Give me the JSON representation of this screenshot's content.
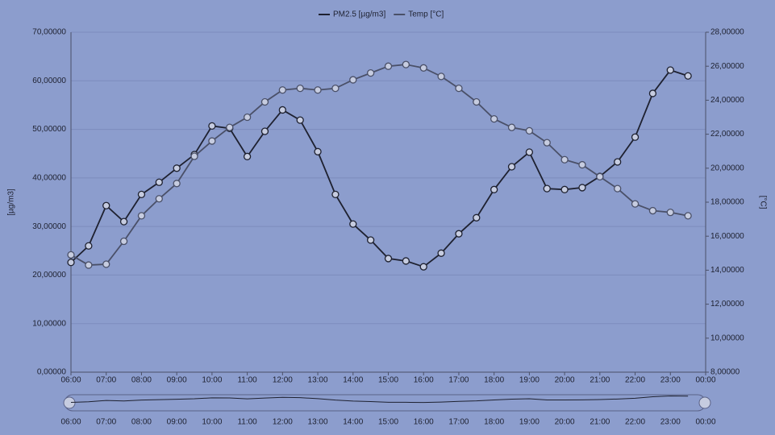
{
  "chart_data": {
    "type": "line",
    "ylabel": "[µg/m3]",
    "y2label": "[°C]",
    "legend": "top",
    "grid": true,
    "x": [
      6,
      6.5,
      7,
      7.5,
      8,
      8.5,
      9,
      9.5,
      10,
      10.5,
      11,
      11.5,
      12,
      12.5,
      13,
      13.5,
      14,
      14.5,
      15,
      15.5,
      16,
      16.5,
      17,
      17.5,
      18,
      18.5,
      19,
      19.5,
      20,
      20.5,
      21,
      21.5,
      22,
      22.5,
      23,
      23.5
    ],
    "series": [
      {
        "name": "PM2.5 [µg/m3]",
        "color": "#1e2130",
        "values": [
          22.6,
          26,
          34.3,
          31,
          36.6,
          39.1,
          42,
          44.8,
          50.7,
          50.2,
          44.4,
          49.6,
          54,
          51.9,
          45.4,
          36.6,
          30.5,
          27.2,
          23.4,
          22.9,
          21.7,
          24.5,
          28.5,
          31.8,
          37.6,
          42.3,
          45.3,
          37.8,
          37.6,
          38,
          40.3,
          43.3,
          48.4,
          57.4,
          62.2,
          61
        ]
      },
      {
        "name": "Temp [°C]",
        "color": "#4a5068",
        "axis": "y2",
        "values": [
          14.9,
          14.3,
          14.35,
          15.7,
          17.2,
          18.2,
          19.1,
          20.7,
          21.6,
          22.4,
          23,
          23.9,
          24.6,
          24.7,
          24.6,
          24.7,
          25.2,
          25.6,
          26,
          26.1,
          25.9,
          25.4,
          24.7,
          23.9,
          22.9,
          22.4,
          22.2,
          21.5,
          20.5,
          20.2,
          19.5,
          18.8,
          17.9,
          17.5,
          17.4,
          17.2
        ]
      }
    ],
    "xlim": [
      6,
      24
    ],
    "xticks": [
      {
        "value": 6,
        "label": "06:00"
      },
      {
        "value": 7,
        "label": "07:00"
      },
      {
        "value": 8,
        "label": "08:00"
      },
      {
        "value": 9,
        "label": "09:00"
      },
      {
        "value": 10,
        "label": "10:00"
      },
      {
        "value": 11,
        "label": "11:00"
      },
      {
        "value": 12,
        "label": "12:00"
      },
      {
        "value": 13,
        "label": "13:00"
      },
      {
        "value": 14,
        "label": "14:00"
      },
      {
        "value": 15,
        "label": "15:00"
      },
      {
        "value": 16,
        "label": "16:00"
      },
      {
        "value": 17,
        "label": "17:00"
      },
      {
        "value": 18,
        "label": "18:00"
      },
      {
        "value": 19,
        "label": "19:00"
      },
      {
        "value": 20,
        "label": "20:00"
      },
      {
        "value": 21,
        "label": "21:00"
      },
      {
        "value": 22,
        "label": "22:00"
      },
      {
        "value": 23,
        "label": "23:00"
      },
      {
        "value": 24,
        "label": "00:00"
      }
    ],
    "ylim": [
      0,
      70
    ],
    "yticks": [
      {
        "value": 0,
        "label": "0,00000"
      },
      {
        "value": 10,
        "label": "10,00000"
      },
      {
        "value": 20,
        "label": "20,00000"
      },
      {
        "value": 30,
        "label": "30,00000"
      },
      {
        "value": 40,
        "label": "40,00000"
      },
      {
        "value": 50,
        "label": "50,00000"
      },
      {
        "value": 60,
        "label": "60,00000"
      },
      {
        "value": 70,
        "label": "70,00000"
      }
    ],
    "y2lim": [
      8,
      28
    ],
    "y2ticks": [
      {
        "value": 8,
        "label": "8,00000"
      },
      {
        "value": 10,
        "label": "10,00000"
      },
      {
        "value": 12,
        "label": "12,00000"
      },
      {
        "value": 14,
        "label": "14,00000"
      },
      {
        "value": 16,
        "label": "16,00000"
      },
      {
        "value": 18,
        "label": "18,00000"
      },
      {
        "value": 20,
        "label": "20,00000"
      },
      {
        "value": 22,
        "label": "22,00000"
      },
      {
        "value": 24,
        "label": "24,00000"
      },
      {
        "value": 26,
        "label": "26,00000"
      },
      {
        "value": 28,
        "label": "28,00000"
      }
    ]
  }
}
